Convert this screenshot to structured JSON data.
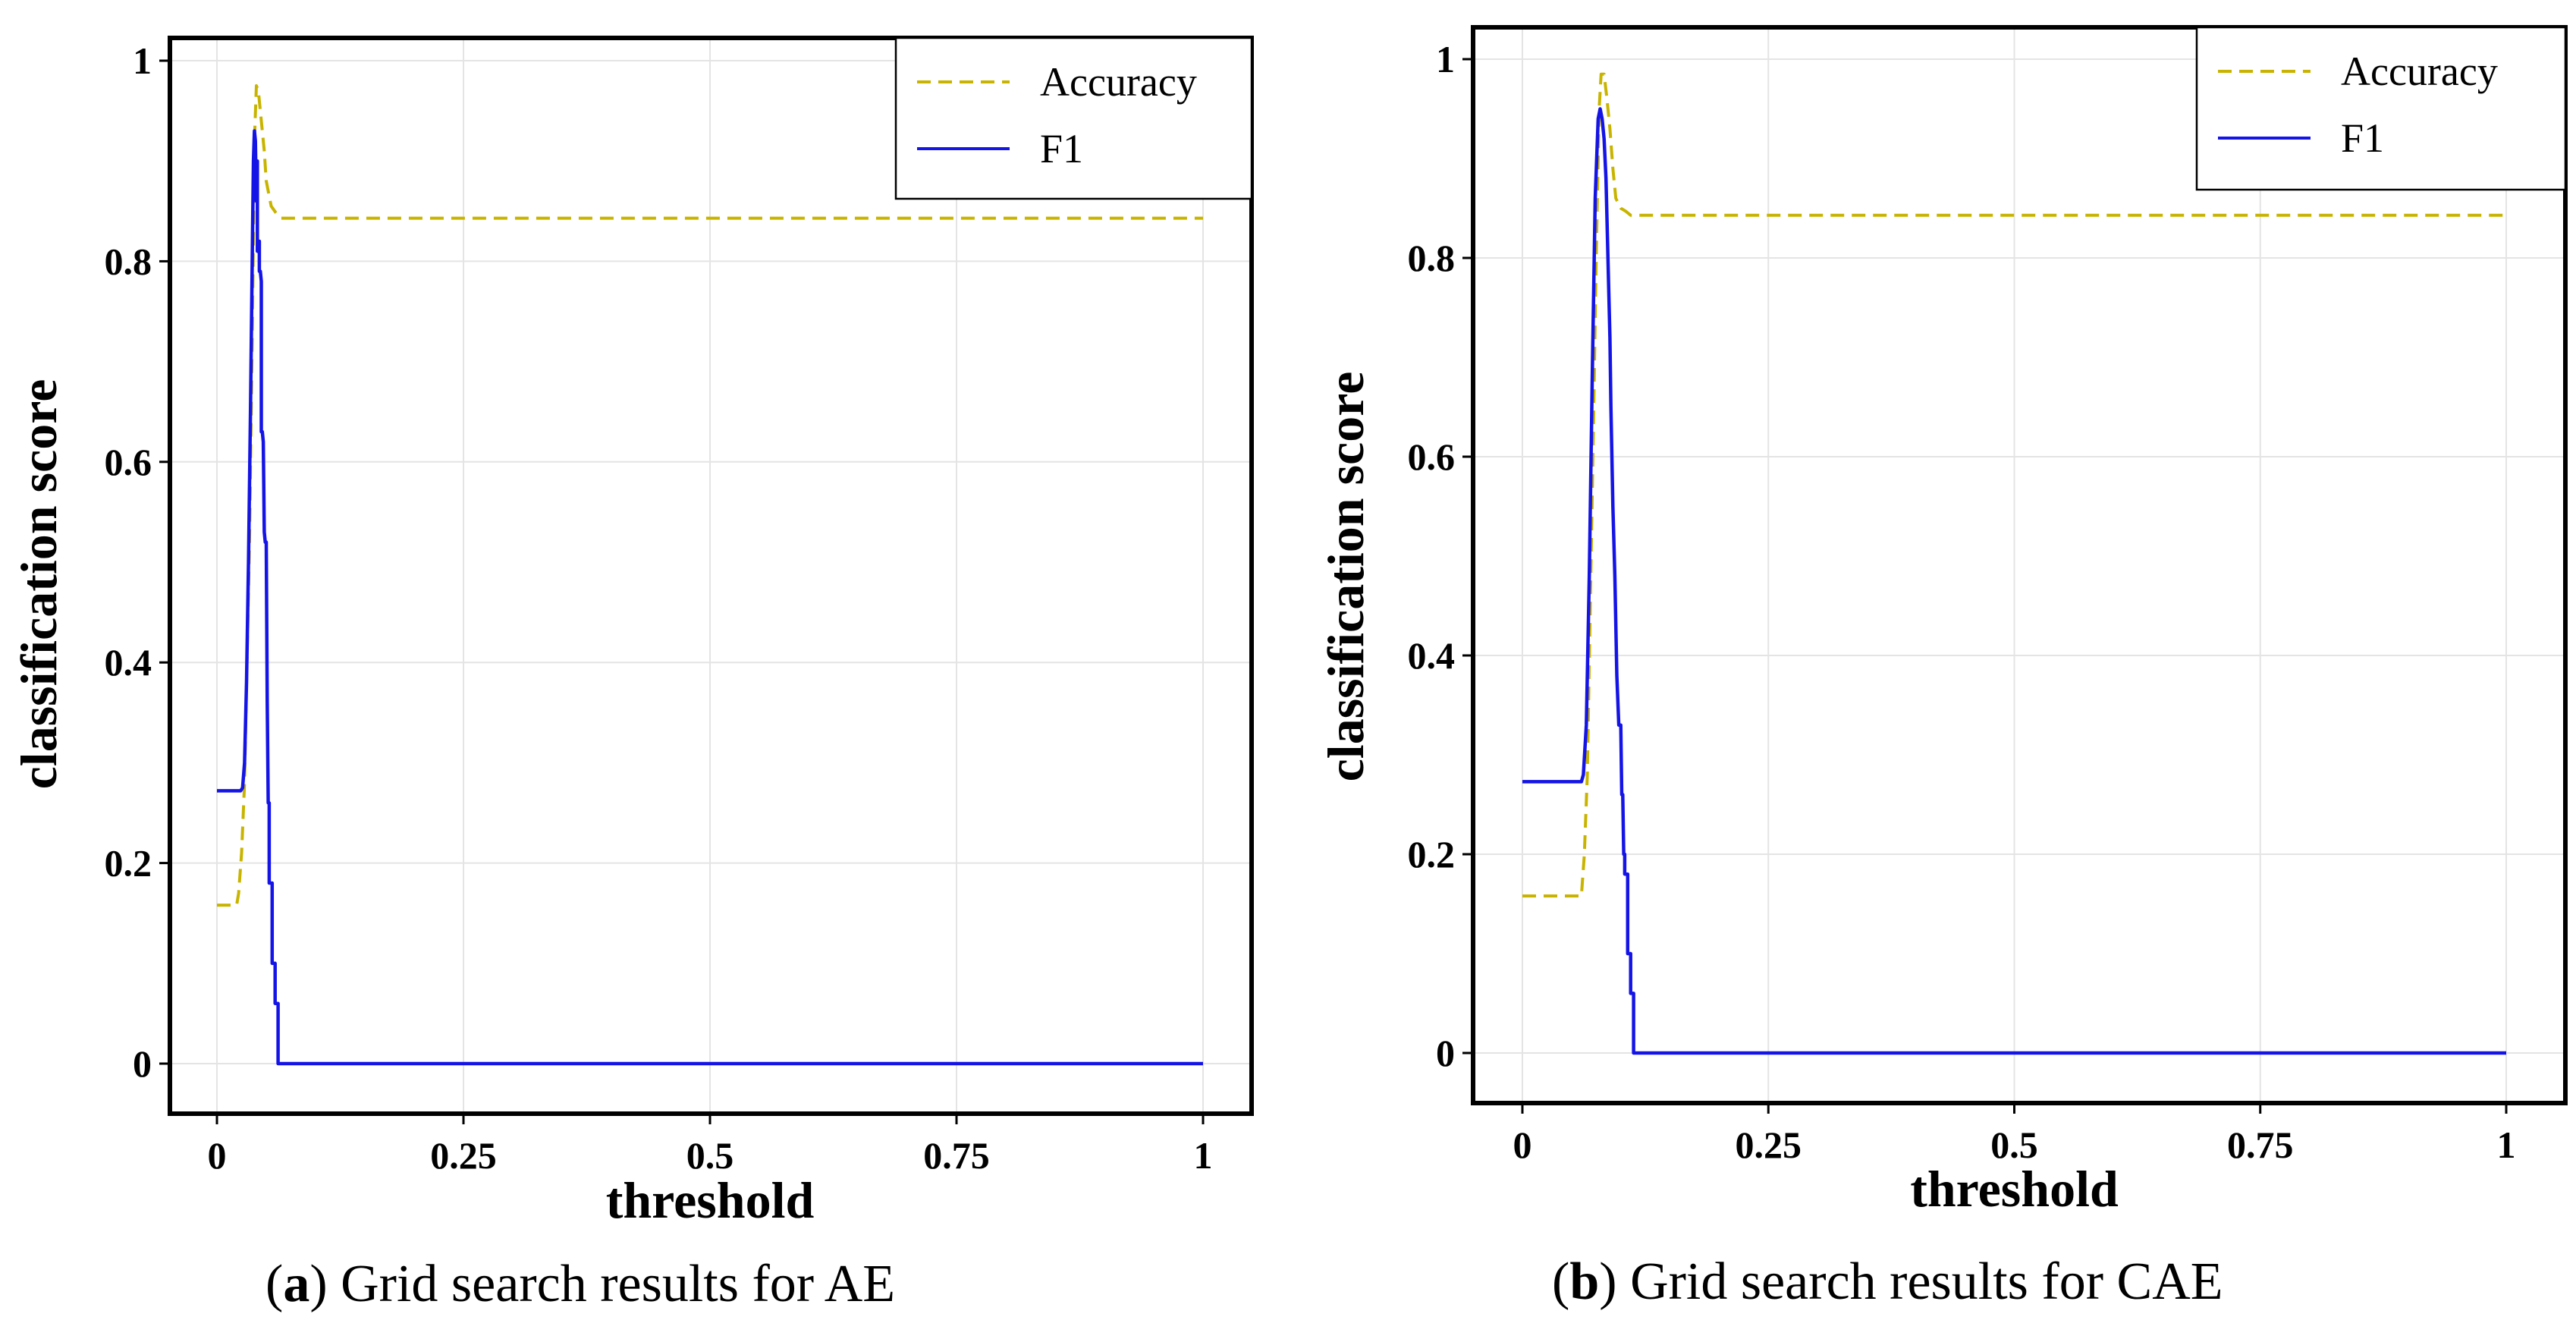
{
  "colors": {
    "accuracy": "#c8b400",
    "f1": "#1414e6",
    "grid": "#e4e4e4",
    "frame": "#000000"
  },
  "chart_data": [
    {
      "type": "line",
      "id": "a",
      "caption_label": "a",
      "caption_text": "Grid search results for AE",
      "xlabel": "threshold",
      "ylabel": "classification score",
      "xlim": [
        -0.05,
        1.05
      ],
      "ylim": [
        -0.05,
        1.02
      ],
      "xticks": [
        0,
        0.25,
        0.5,
        0.75,
        1
      ],
      "xtick_labels": [
        "0",
        "0.25",
        "0.5",
        "0.75",
        "1"
      ],
      "yticks": [
        0,
        0.2,
        0.4,
        0.6,
        0.8,
        1
      ],
      "ytick_labels": [
        "0",
        "0.2",
        "0.4",
        "0.6",
        "0.8",
        "1"
      ],
      "legend": {
        "position": "top-right",
        "entries": [
          "Accuracy",
          "F1"
        ]
      },
      "series": [
        {
          "name": "Accuracy",
          "style": "dashed",
          "x": [
            0,
            0.02,
            0.022,
            0.025,
            0.028,
            0.03,
            0.033,
            0.036,
            0.038,
            0.04,
            0.042,
            0.045,
            0.048,
            0.05,
            0.055,
            0.06,
            0.065,
            1.0
          ],
          "y": [
            0.158,
            0.158,
            0.17,
            0.21,
            0.28,
            0.38,
            0.52,
            0.74,
            0.92,
            0.975,
            0.97,
            0.94,
            0.91,
            0.88,
            0.855,
            0.848,
            0.843,
            0.843
          ]
        },
        {
          "name": "F1",
          "style": "solid",
          "x": [
            0,
            0.024,
            0.026,
            0.028,
            0.03,
            0.032,
            0.034,
            0.036,
            0.037,
            0.038,
            0.039,
            0.04,
            0.041,
            0.041,
            0.042,
            0.043,
            0.043,
            0.044,
            0.045,
            0.045,
            0.046,
            0.047,
            0.047,
            0.048,
            0.049,
            0.049,
            0.05,
            0.051,
            0.051,
            0.052,
            0.053,
            0.053,
            0.055,
            0.056,
            0.056,
            0.058,
            0.059,
            0.059,
            0.061,
            0.062,
            0.062,
            1.0
          ],
          "y": [
            0.272,
            0.272,
            0.275,
            0.3,
            0.38,
            0.5,
            0.65,
            0.82,
            0.9,
            0.93,
            0.92,
            0.86,
            0.9,
            0.81,
            0.81,
            0.82,
            0.79,
            0.79,
            0.78,
            0.63,
            0.63,
            0.62,
            0.62,
            0.53,
            0.52,
            0.52,
            0.52,
            0.36,
            0.36,
            0.26,
            0.26,
            0.18,
            0.18,
            0.18,
            0.1,
            0.1,
            0.1,
            0.06,
            0.06,
            0.06,
            0.0,
            0.0
          ]
        }
      ]
    },
    {
      "type": "line",
      "id": "b",
      "caption_label": "b",
      "caption_text": "Grid search results for CAE",
      "xlabel": "threshold",
      "ylabel": "classification score",
      "xlim": [
        -0.05,
        1.05
      ],
      "ylim": [
        -0.05,
        1.03
      ],
      "xticks": [
        0,
        0.25,
        0.5,
        0.75,
        1
      ],
      "xtick_labels": [
        "0",
        "0.25",
        "0.5",
        "0.75",
        "1"
      ],
      "yticks": [
        0,
        0.2,
        0.4,
        0.6,
        0.8,
        1
      ],
      "ytick_labels": [
        "0",
        "0.2",
        "0.4",
        "0.6",
        "0.8",
        "1"
      ],
      "legend": {
        "position": "top-right",
        "entries": [
          "Accuracy",
          "F1"
        ]
      },
      "series": [
        {
          "name": "Accuracy",
          "style": "dashed",
          "x": [
            0,
            0.06,
            0.063,
            0.066,
            0.069,
            0.072,
            0.075,
            0.078,
            0.08,
            0.083,
            0.086,
            0.089,
            0.092,
            0.095,
            0.1,
            0.105,
            0.11,
            1.0
          ],
          "y": [
            0.158,
            0.158,
            0.2,
            0.28,
            0.45,
            0.62,
            0.8,
            0.95,
            0.985,
            0.985,
            0.96,
            0.93,
            0.89,
            0.86,
            0.85,
            0.847,
            0.843,
            0.843
          ]
        },
        {
          "name": "F1",
          "style": "solid",
          "x": [
            0,
            0.06,
            0.062,
            0.065,
            0.068,
            0.071,
            0.074,
            0.077,
            0.079,
            0.081,
            0.083,
            0.085,
            0.087,
            0.089,
            0.09,
            0.092,
            0.094,
            0.096,
            0.098,
            0.1,
            0.101,
            0.102,
            0.103,
            0.104,
            0.104,
            0.107,
            0.107,
            0.11,
            0.11,
            0.113,
            0.113,
            1.0
          ],
          "y": [
            0.273,
            0.273,
            0.28,
            0.33,
            0.48,
            0.68,
            0.86,
            0.94,
            0.95,
            0.94,
            0.92,
            0.88,
            0.8,
            0.72,
            0.65,
            0.55,
            0.48,
            0.38,
            0.33,
            0.33,
            0.26,
            0.26,
            0.2,
            0.2,
            0.18,
            0.18,
            0.1,
            0.1,
            0.06,
            0.06,
            0.0,
            0.0
          ]
        }
      ]
    }
  ]
}
